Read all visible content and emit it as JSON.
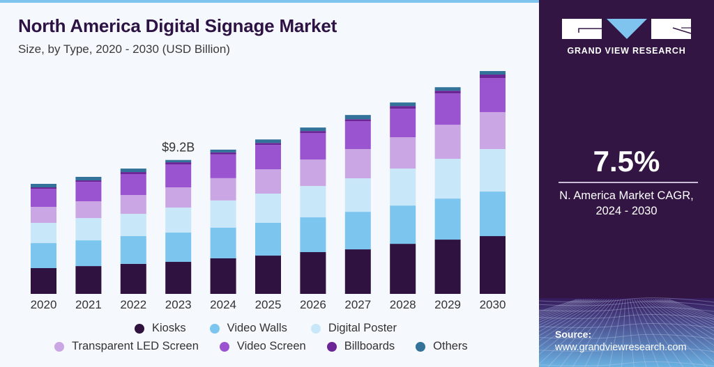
{
  "header": {
    "title": "North America Digital Signage Market",
    "subtitle": "Size, by Type, 2020 - 2030 (USD Billion)"
  },
  "brand": {
    "name": "GRAND VIEW RESEARCH",
    "logo_icon": "gvr-logo-icon",
    "colors": {
      "dark_purple": "#321543",
      "accent_blue": "#7ec4ee"
    }
  },
  "sidebar": {
    "cagr_value": "7.5%",
    "cagr_label_line1": "N. America Market CAGR,",
    "cagr_label_line2": "2024 - 2030",
    "source_label": "Source:",
    "source_url": "www.grandviewresearch.com"
  },
  "chart_data": {
    "type": "bar",
    "stacked": true,
    "title": "North America Digital Signage Market",
    "subtitle": "Size, by Type, 2020 - 2030 (USD Billion)",
    "xlabel": "",
    "ylabel": "USD Billion",
    "ylim": [
      0,
      16
    ],
    "grid": false,
    "legend_position": "bottom",
    "categories": [
      "2020",
      "2021",
      "2022",
      "2023",
      "2024",
      "2025",
      "2026",
      "2027",
      "2028",
      "2029",
      "2030"
    ],
    "series": [
      {
        "name": "Kiosks",
        "color": "#2f1240",
        "values": [
          1.77,
          1.91,
          2.06,
          2.2,
          2.44,
          2.63,
          2.87,
          3.06,
          3.44,
          3.73,
          3.97
        ]
      },
      {
        "name": "Video Walls",
        "color": "#7cc5ef",
        "values": [
          1.72,
          1.77,
          1.91,
          2.01,
          2.11,
          2.25,
          2.39,
          2.58,
          2.63,
          2.82,
          3.06
        ]
      },
      {
        "name": "Digital Poster",
        "color": "#c8e7f9",
        "values": [
          1.39,
          1.53,
          1.53,
          1.72,
          1.87,
          2.01,
          2.15,
          2.3,
          2.54,
          2.73,
          2.92
        ]
      },
      {
        "name": "Transparent LED Screen",
        "color": "#cba6e4",
        "values": [
          1.1,
          1.15,
          1.29,
          1.39,
          1.53,
          1.67,
          1.82,
          2.01,
          2.15,
          2.34,
          2.54
        ]
      },
      {
        "name": "Video Screen",
        "color": "#9b54d0",
        "values": [
          1.24,
          1.34,
          1.44,
          1.58,
          1.63,
          1.67,
          1.82,
          1.91,
          1.96,
          2.15,
          2.34
        ]
      },
      {
        "name": "Billboards",
        "color": "#6b2596",
        "values": [
          0.1,
          0.1,
          0.14,
          0.14,
          0.14,
          0.14,
          0.14,
          0.14,
          0.19,
          0.19,
          0.24
        ]
      },
      {
        "name": "Others",
        "color": "#33739a",
        "values": [
          0.24,
          0.24,
          0.24,
          0.16,
          0.19,
          0.24,
          0.24,
          0.29,
          0.24,
          0.24,
          0.24
        ]
      }
    ],
    "annotations": [
      {
        "category": "2023",
        "text": "$9.2B"
      }
    ]
  }
}
